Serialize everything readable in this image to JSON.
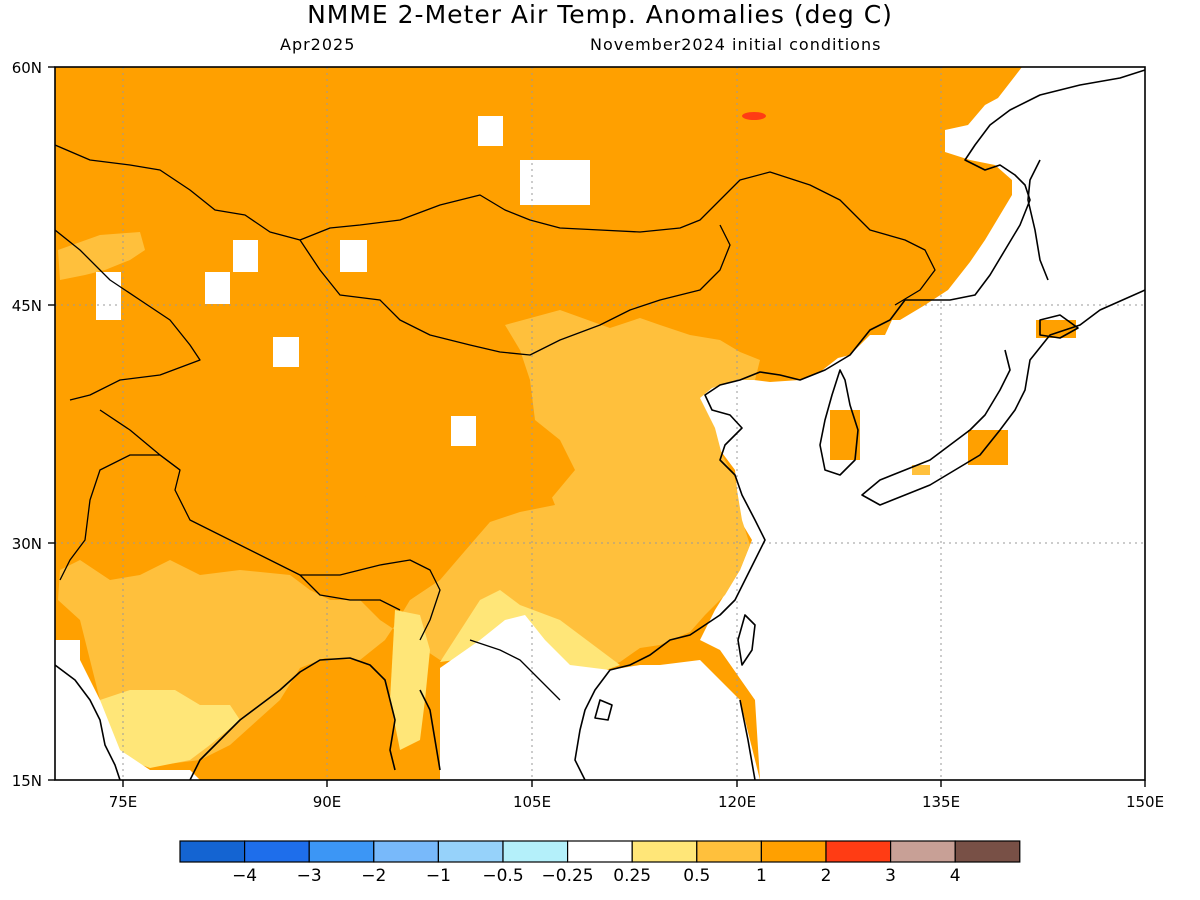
{
  "title": "NMME 2-Meter Air Temp. Anomalies (deg C)",
  "valid_month": "Apr2025",
  "initial_conditions": "November2024 initial conditions",
  "axes": {
    "lat_labels": [
      "60N",
      "45N",
      "30N",
      "15N"
    ],
    "lon_labels": [
      "75E",
      "90E",
      "105E",
      "120E",
      "135E",
      "150E"
    ]
  },
  "colorbar": {
    "colors": [
      "#1464d2",
      "#1e6eeb",
      "#3c96f5",
      "#78b9fa",
      "#96d2fa",
      "#b4f0fa",
      "#ffffff",
      "#ffe678",
      "#ffc03c",
      "#ffa000",
      "#ff3c14",
      "#c8a096",
      "#785046"
    ],
    "labels": [
      "-4",
      "-3",
      "-2",
      "-1",
      "-0.5",
      "-0.25",
      "0.25",
      "0.5",
      "1",
      "2",
      "3",
      "4"
    ]
  },
  "map_colors": {
    "anom_1_2": "#ffa000",
    "anom_05_1": "#ffc03c",
    "anom_025_05": "#ffe678",
    "anom_2_3": "#ff3c14",
    "ocean": "#ffffff",
    "coast": "#000000"
  }
}
